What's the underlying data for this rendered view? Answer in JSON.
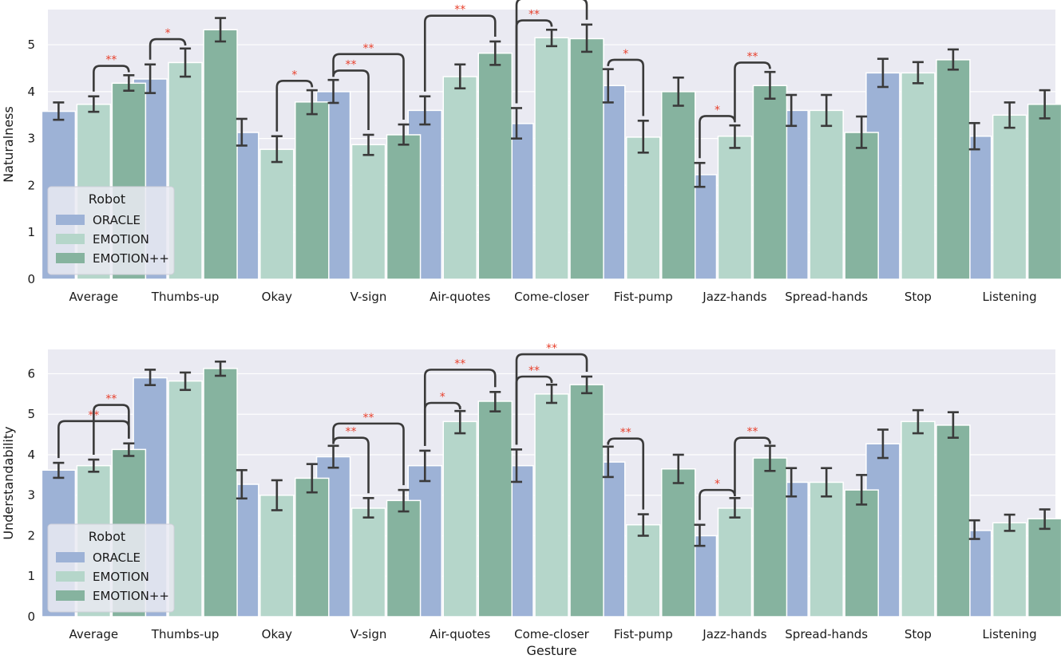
{
  "colors": {
    "background": "#eaeaf2",
    "grid": "#ffffff",
    "ORACLE": "#9db2d6",
    "EMOTION": "#b5d6ca",
    "EMOTION++": "#86b39f",
    "errorbar": "#3a3a3a",
    "significance": "#e8402c"
  },
  "chart_data": [
    {
      "type": "bar",
      "ylabel": "Naturalness",
      "xlabel": "",
      "ylim": [
        0,
        5.75
      ],
      "yticks": [
        "0",
        "1",
        "2",
        "3",
        "4",
        "5"
      ],
      "grid": true,
      "legend": {
        "title": "Robot",
        "placement": "lower-left"
      },
      "categories": [
        "Average",
        "Thumbs-up",
        "Okay",
        "V-sign",
        "Air-quotes",
        "Come-closer",
        "Fist-pump",
        "Jazz-hands",
        "Spread-hands",
        "Stop",
        "Listening"
      ],
      "series": [
        {
          "name": "ORACLE",
          "values": [
            3.58,
            4.27,
            3.13,
            4.0,
            3.6,
            3.32,
            4.13,
            2.23,
            3.6,
            4.4,
            3.05
          ],
          "ci_low": [
            3.4,
            3.97,
            2.85,
            3.76,
            3.3,
            3.0,
            3.77,
            1.97,
            3.27,
            4.1,
            2.77
          ],
          "ci_high": [
            3.77,
            4.58,
            3.42,
            4.25,
            3.9,
            3.65,
            4.48,
            2.48,
            3.93,
            4.7,
            3.33
          ]
        },
        {
          "name": "EMOTION",
          "values": [
            3.73,
            4.62,
            2.77,
            2.87,
            4.32,
            5.15,
            3.03,
            3.05,
            3.6,
            4.4,
            3.5
          ],
          "ci_low": [
            3.57,
            4.32,
            2.5,
            2.65,
            4.07,
            4.97,
            2.7,
            2.8,
            3.27,
            4.18,
            3.23
          ],
          "ci_high": [
            3.9,
            4.92,
            3.05,
            3.08,
            4.58,
            5.32,
            3.38,
            3.28,
            3.93,
            4.63,
            3.77
          ]
        },
        {
          "name": "EMOTION++",
          "values": [
            4.18,
            5.32,
            3.78,
            3.08,
            4.82,
            5.13,
            4.0,
            4.13,
            3.13,
            4.68,
            3.73
          ],
          "ci_low": [
            4.02,
            5.07,
            3.52,
            2.87,
            4.57,
            4.85,
            3.7,
            3.85,
            2.8,
            4.47,
            3.43
          ],
          "ci_high": [
            4.35,
            5.57,
            4.03,
            3.3,
            5.07,
            5.43,
            4.3,
            4.42,
            3.47,
            4.9,
            4.03
          ]
        }
      ],
      "significance": [
        {
          "category": "Average",
          "from": "EMOTION",
          "to": "EMOTION++",
          "label": "**"
        },
        {
          "category": "Thumbs-up",
          "from": "ORACLE",
          "to": "EMOTION",
          "label": "*"
        },
        {
          "category": "Okay",
          "from": "EMOTION",
          "to": "EMOTION++",
          "label": "*"
        },
        {
          "category": "V-sign",
          "from": "ORACLE",
          "to": "EMOTION",
          "label": "**"
        },
        {
          "category": "V-sign",
          "from": "ORACLE",
          "to": "EMOTION++",
          "label": "**"
        },
        {
          "category": "Air-quotes",
          "from": "ORACLE",
          "to": "EMOTION++",
          "label": "**"
        },
        {
          "category": "Come-closer",
          "from": "ORACLE",
          "to": "EMOTION",
          "label": "**"
        },
        {
          "category": "Come-closer",
          "from": "ORACLE",
          "to": "EMOTION++",
          "label": "**"
        },
        {
          "category": "Fist-pump",
          "from": "ORACLE",
          "to": "EMOTION",
          "label": "*"
        },
        {
          "category": "Jazz-hands",
          "from": "ORACLE",
          "to": "EMOTION",
          "label": "*"
        },
        {
          "category": "Jazz-hands",
          "from": "EMOTION",
          "to": "EMOTION++",
          "label": "**"
        }
      ]
    },
    {
      "type": "bar",
      "ylabel": "Understandability",
      "xlabel": "Gesture",
      "ylim": [
        0,
        6.6
      ],
      "yticks": [
        "0",
        "1",
        "2",
        "3",
        "4",
        "5",
        "6"
      ],
      "grid": true,
      "legend": {
        "title": "Robot",
        "placement": "lower-left"
      },
      "categories": [
        "Average",
        "Thumbs-up",
        "Okay",
        "V-sign",
        "Air-quotes",
        "Come-closer",
        "Fist-pump",
        "Jazz-hands",
        "Spread-hands",
        "Stop",
        "Listening"
      ],
      "series": [
        {
          "name": "ORACLE",
          "values": [
            3.62,
            5.9,
            3.27,
            3.95,
            3.73,
            3.73,
            3.82,
            2.0,
            3.32,
            4.27,
            2.13
          ],
          "ci_low": [
            3.43,
            5.72,
            2.92,
            3.68,
            3.35,
            3.33,
            3.45,
            1.75,
            2.97,
            3.92,
            1.92
          ],
          "ci_high": [
            3.8,
            6.1,
            3.62,
            4.22,
            4.1,
            4.13,
            4.2,
            2.27,
            3.67,
            4.62,
            2.38
          ]
        },
        {
          "name": "EMOTION",
          "values": [
            3.73,
            5.82,
            3.0,
            2.68,
            4.82,
            5.5,
            2.27,
            2.68,
            3.32,
            4.82,
            2.32
          ],
          "ci_low": [
            3.58,
            5.6,
            2.63,
            2.45,
            4.53,
            5.28,
            2.0,
            2.45,
            2.97,
            4.53,
            2.12
          ],
          "ci_high": [
            3.88,
            6.03,
            3.37,
            2.93,
            5.08,
            5.73,
            2.53,
            2.93,
            3.67,
            5.1,
            2.52
          ]
        },
        {
          "name": "EMOTION++",
          "values": [
            4.13,
            6.13,
            3.42,
            2.87,
            5.32,
            5.73,
            3.65,
            3.92,
            3.13,
            4.73,
            2.42
          ],
          "ci_low": [
            3.97,
            5.95,
            3.07,
            2.6,
            5.07,
            5.52,
            3.3,
            3.6,
            2.77,
            4.42,
            2.17
          ],
          "ci_high": [
            4.28,
            6.3,
            3.77,
            3.13,
            5.55,
            5.93,
            4.0,
            4.22,
            3.5,
            5.05,
            2.65
          ]
        }
      ],
      "significance": [
        {
          "category": "Average",
          "from": "ORACLE",
          "to": "EMOTION++",
          "label": "**"
        },
        {
          "category": "Average",
          "from": "EMOTION",
          "to": "EMOTION++",
          "label": "**"
        },
        {
          "category": "V-sign",
          "from": "ORACLE",
          "to": "EMOTION",
          "label": "**"
        },
        {
          "category": "V-sign",
          "from": "ORACLE",
          "to": "EMOTION++",
          "label": "**"
        },
        {
          "category": "Air-quotes",
          "from": "ORACLE",
          "to": "EMOTION",
          "label": "*"
        },
        {
          "category": "Air-quotes",
          "from": "ORACLE",
          "to": "EMOTION++",
          "label": "**"
        },
        {
          "category": "Come-closer",
          "from": "ORACLE",
          "to": "EMOTION",
          "label": "**"
        },
        {
          "category": "Come-closer",
          "from": "ORACLE",
          "to": "EMOTION++",
          "label": "**"
        },
        {
          "category": "Fist-pump",
          "from": "ORACLE",
          "to": "EMOTION",
          "label": "**"
        },
        {
          "category": "Jazz-hands",
          "from": "ORACLE",
          "to": "EMOTION",
          "label": "*"
        },
        {
          "category": "Jazz-hands",
          "from": "EMOTION",
          "to": "EMOTION++",
          "label": "**"
        }
      ]
    }
  ]
}
